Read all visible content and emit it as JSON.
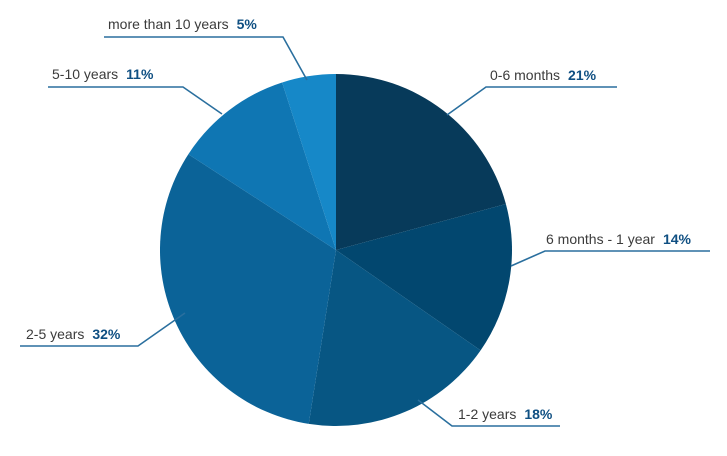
{
  "chart_data": {
    "type": "pie",
    "title": "",
    "slices": [
      {
        "label": "0-6 months",
        "value": 21,
        "value_label": "21%",
        "color": "#073a5a"
      },
      {
        "label": "6 months - 1 year",
        "value": 14,
        "value_label": "14%",
        "color": "#02476f"
      },
      {
        "label": "1-2 years",
        "value": 18,
        "value_label": "18%",
        "color": "#075683"
      },
      {
        "label": "2-5 years",
        "value": 32,
        "value_label": "32%",
        "color": "#0b6398"
      },
      {
        "label": "5-10 years",
        "value": 11,
        "value_label": "11%",
        "color": "#0f76b3"
      },
      {
        "label": "more than 10 years",
        "value": 5,
        "value_label": "5%",
        "color": "#1688c8"
      }
    ],
    "start": "12 o'clock",
    "direction": "clockwise",
    "legend": "none",
    "leader_line_color": "#2a6f9e"
  }
}
